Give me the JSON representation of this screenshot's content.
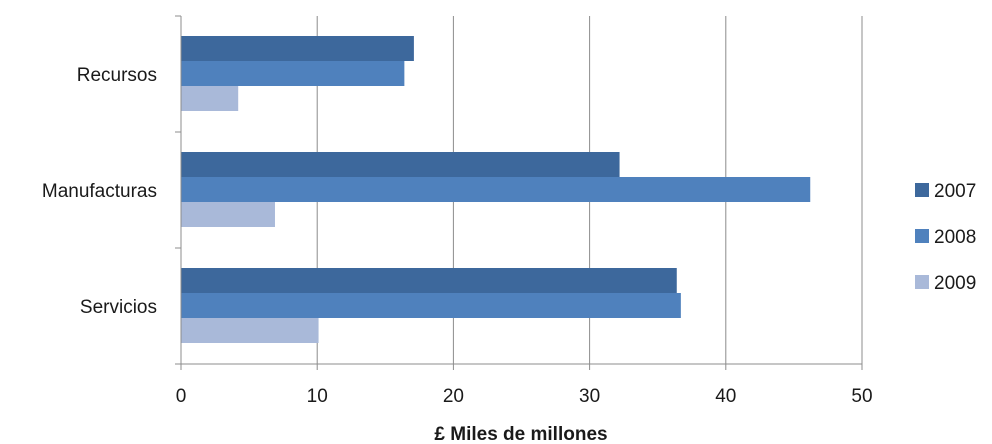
{
  "chart_data": {
    "type": "bar",
    "orientation": "horizontal",
    "categories": [
      "Recursos",
      "Manufacturas",
      "Servicios"
    ],
    "series": [
      {
        "name": "2007",
        "color": "#3d689c",
        "values": [
          17.1,
          32.2,
          36.4
        ]
      },
      {
        "name": "2008",
        "color": "#4f81bd",
        "values": [
          16.4,
          46.2,
          36.7
        ]
      },
      {
        "name": "2009",
        "color": "#a9b9d9",
        "values": [
          4.2,
          6.9,
          10.1
        ]
      }
    ],
    "xlabel": "£ Miles de millones",
    "xlim": [
      0,
      50
    ],
    "xticks": [
      0,
      10,
      20,
      30,
      40,
      50
    ],
    "grid": true,
    "legend": "right"
  }
}
